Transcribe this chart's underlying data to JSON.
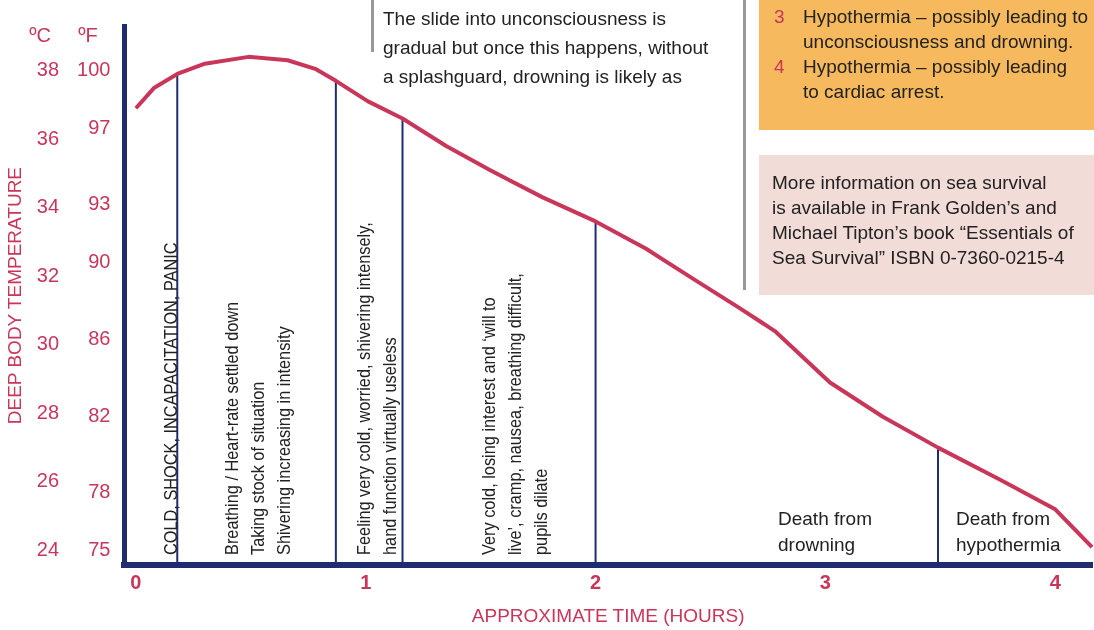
{
  "chart_data": {
    "type": "line",
    "xlabel": "APPROXIMATE TIME (HOURS)",
    "ylabel": "DEEP BODY TEMPERATURE",
    "x": [
      0,
      0.08,
      0.18,
      0.3,
      0.49,
      0.66,
      0.78,
      0.87,
      1.01,
      1.16,
      1.35,
      1.54,
      1.77,
      2.0,
      2.22,
      2.43,
      2.62,
      2.78,
      3.02,
      3.25,
      3.49,
      3.75,
      4.0,
      4.16
    ],
    "series": [
      {
        "color": "#c8375a",
        "values": [
          36.9,
          37.5,
          37.9,
          38.2,
          38.4,
          38.3,
          38.05,
          37.7,
          37.1,
          36.6,
          35.8,
          35.1,
          34.3,
          33.6,
          32.8,
          31.9,
          31.1,
          30.4,
          28.9,
          27.9,
          27.0,
          26.1,
          25.2,
          24.1
        ]
      }
    ],
    "xlim": [
      -0.05,
      4.16
    ],
    "xticks": [
      0,
      1,
      2,
      3,
      4
    ],
    "ylim": [
      23.57,
      39.3
    ],
    "yticks": [
      24,
      26,
      28,
      30,
      32,
      34,
      36,
      38
    ],
    "y2lim": [
      74.23,
      102.32
    ],
    "y2ticks": [
      75,
      78,
      82,
      86,
      90,
      93,
      97,
      100
    ],
    "marker": "none",
    "ref_lines": [
      {
        "axis": "x",
        "value": 0.18,
        "color": "#1f2d6e"
      },
      {
        "axis": "x",
        "value": 0.87,
        "color": "#1f2d6e"
      },
      {
        "axis": "x",
        "value": 1.16,
        "color": "#1f2d6e"
      },
      {
        "axis": "x",
        "value": 2.0,
        "color": "#1f2d6e"
      },
      {
        "axis": "x",
        "value": 3.49,
        "color": "#1f2d6e"
      }
    ],
    "annotations": [
      "COLD, SHOCK, INCAPACITATION, PANIC",
      "Breathing / Heart-rate settled down\nTaking stock of situation\nShivering increasing in intensity",
      "Feeling very cold, worried, shivering intensely,\nhand function virtually useless",
      "Very cold, losing interest and ‘will to\nlive’, cramp, nausea, breathing difficult,\npupils dilate",
      "Death from\ndrowning",
      "Death from\nhypothermia",
      "ºC",
      "ºF",
      "The slide into unconsciousness is\ngradual but once this happens, without\na splashguard, drowning is likely as",
      "3",
      "Hypothermia – possibly leading to\nunconsciousness and drowning.",
      "4",
      "Hypothermia – possibly leading\nto cardiac arrest.",
      "More information on sea survival\nis available in Frank Golden’s and\nMichael Tipton’s book “Essentials of\nSea Survival” ISBN 0-7360-0215-4"
    ]
  }
}
